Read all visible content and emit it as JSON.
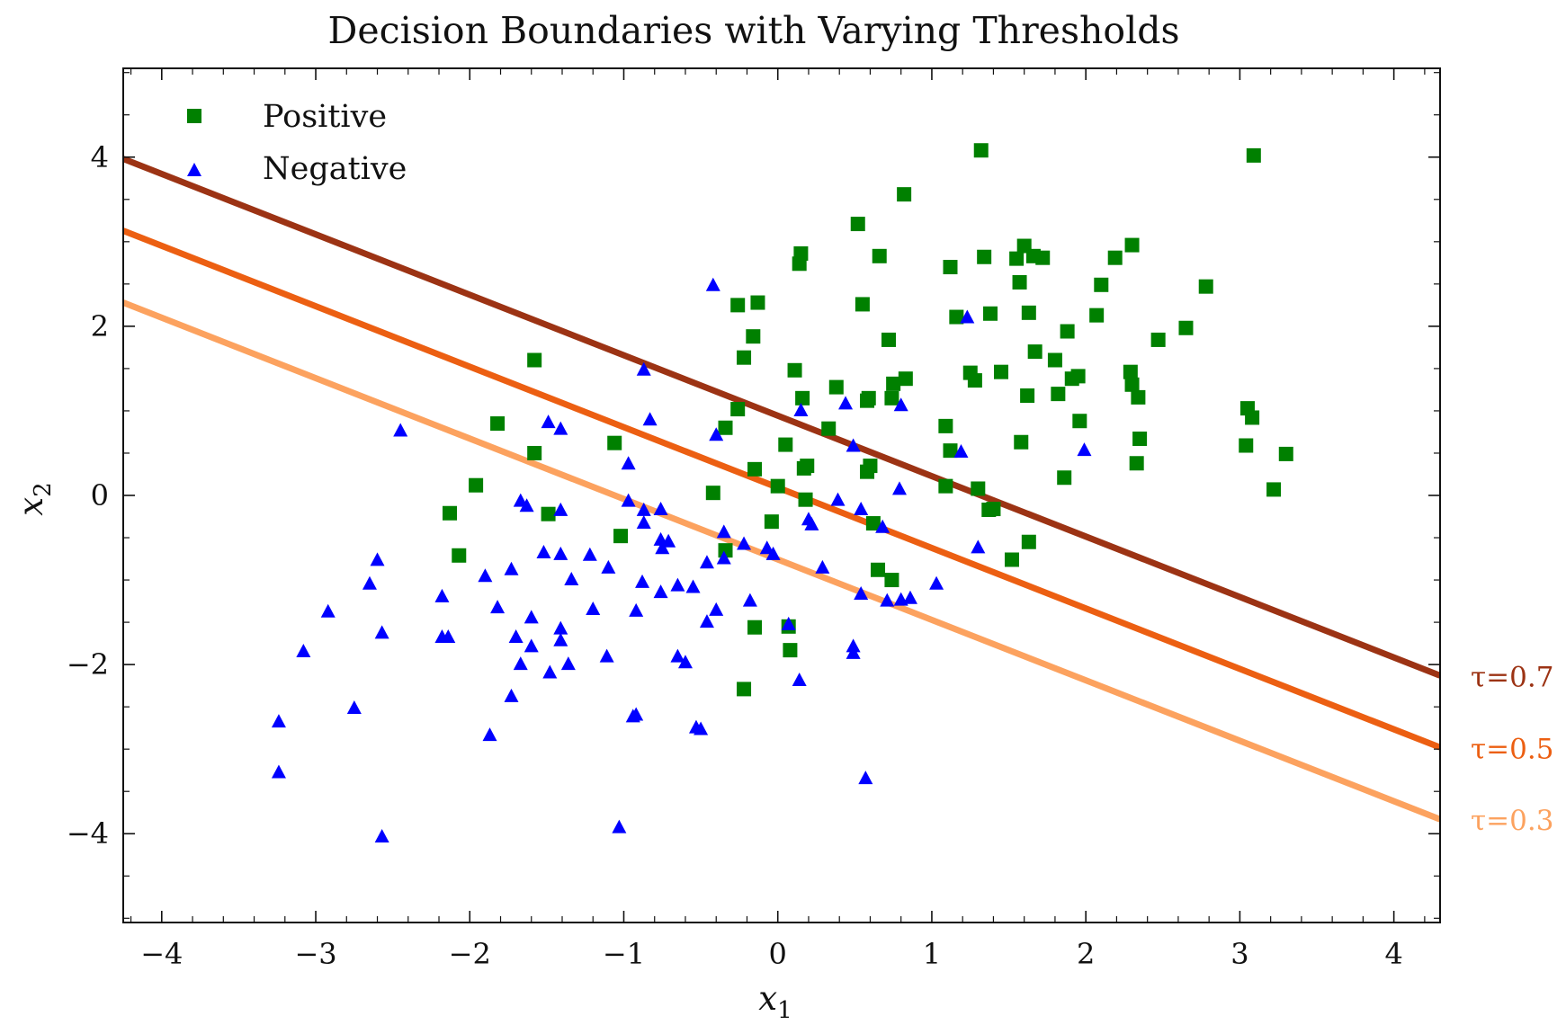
{
  "chart_data": {
    "type": "scatter",
    "title": "Decision Boundaries with Varying Thresholds",
    "xlabel": "x1",
    "ylabel": "x2",
    "xlim": [
      -4.25,
      4.3
    ],
    "ylim": [
      -5.05,
      5.05
    ],
    "x_ticks": [
      -4,
      -3,
      -2,
      -1,
      0,
      1,
      2,
      3,
      4
    ],
    "x_tick_labels": [
      "−4",
      "−3",
      "−2",
      "−1",
      "0",
      "1",
      "2",
      "3",
      "4"
    ],
    "y_ticks": [
      -4,
      -2,
      0,
      2,
      4
    ],
    "y_tick_labels": [
      "−4",
      "−2",
      "0",
      "2",
      "4"
    ],
    "grid": false,
    "legend_position": "top-left",
    "series": [
      {
        "name": "Positive",
        "marker": "square",
        "color": "#008000",
        "points": [
          [
            -1.58,
            1.6
          ],
          [
            -1.82,
            0.85
          ],
          [
            -1.58,
            0.5
          ],
          [
            -1.49,
            -0.22
          ],
          [
            -1.96,
            0.12
          ],
          [
            -2.13,
            -0.21
          ],
          [
            -2.07,
            -0.71
          ],
          [
            -1.06,
            0.62
          ],
          [
            -1.02,
            -0.48
          ],
          [
            -0.26,
            2.25
          ],
          [
            -0.13,
            2.28
          ],
          [
            -0.16,
            1.88
          ],
          [
            -0.22,
            1.63
          ],
          [
            -0.26,
            1.02
          ],
          [
            -0.34,
            0.8
          ],
          [
            -0.42,
            0.03
          ],
          [
            -0.34,
            -0.65
          ],
          [
            -0.15,
            0.31
          ],
          [
            -0.04,
            -0.31
          ],
          [
            0.0,
            0.11
          ],
          [
            0.05,
            0.6
          ],
          [
            0.15,
            2.86
          ],
          [
            0.14,
            2.74
          ],
          [
            0.11,
            1.48
          ],
          [
            0.16,
            1.15
          ],
          [
            0.17,
            0.32
          ],
          [
            0.19,
            0.35
          ],
          [
            0.18,
            -0.05
          ],
          [
            0.07,
            -1.55
          ],
          [
            0.08,
            -1.83
          ],
          [
            -0.22,
            -2.29
          ],
          [
            -0.15,
            -1.56
          ],
          [
            0.52,
            3.21
          ],
          [
            0.55,
            2.26
          ],
          [
            0.58,
            1.12
          ],
          [
            0.59,
            1.15
          ],
          [
            0.38,
            1.28
          ],
          [
            0.33,
            0.79
          ],
          [
            0.6,
            0.35
          ],
          [
            0.58,
            0.28
          ],
          [
            0.62,
            -0.33
          ],
          [
            0.65,
            -0.88
          ],
          [
            0.66,
            2.83
          ],
          [
            0.72,
            1.84
          ],
          [
            0.75,
            1.32
          ],
          [
            0.74,
            1.15
          ],
          [
            0.83,
            1.38
          ],
          [
            0.82,
            3.56
          ],
          [
            0.74,
            -1.0
          ],
          [
            1.32,
            4.08
          ],
          [
            1.12,
            2.7
          ],
          [
            1.34,
            2.82
          ],
          [
            1.16,
            2.11
          ],
          [
            1.38,
            2.15
          ],
          [
            1.25,
            1.45
          ],
          [
            1.28,
            1.36
          ],
          [
            1.45,
            1.46
          ],
          [
            1.09,
            0.82
          ],
          [
            1.12,
            0.53
          ],
          [
            1.09,
            0.11
          ],
          [
            1.3,
            0.08
          ],
          [
            1.37,
            -0.17
          ],
          [
            1.4,
            -0.16
          ],
          [
            1.52,
            -0.76
          ],
          [
            1.63,
            -0.55
          ],
          [
            1.55,
            2.8
          ],
          [
            1.6,
            2.95
          ],
          [
            1.66,
            2.83
          ],
          [
            1.72,
            2.81
          ],
          [
            1.57,
            2.52
          ],
          [
            1.63,
            2.16
          ],
          [
            1.67,
            1.7
          ],
          [
            1.62,
            1.18
          ],
          [
            1.58,
            0.63
          ],
          [
            1.8,
            1.6
          ],
          [
            1.88,
            1.94
          ],
          [
            1.91,
            1.38
          ],
          [
            1.95,
            1.41
          ],
          [
            1.82,
            1.2
          ],
          [
            1.96,
            0.88
          ],
          [
            1.86,
            0.21
          ],
          [
            2.07,
            2.13
          ],
          [
            2.1,
            2.49
          ],
          [
            2.19,
            2.81
          ],
          [
            2.3,
            2.96
          ],
          [
            2.29,
            1.46
          ],
          [
            2.3,
            1.31
          ],
          [
            2.34,
            1.16
          ],
          [
            2.35,
            0.67
          ],
          [
            2.33,
            0.38
          ],
          [
            2.47,
            1.84
          ],
          [
            2.65,
            1.98
          ],
          [
            2.78,
            2.47
          ],
          [
            3.09,
            4.02
          ],
          [
            3.05,
            1.03
          ],
          [
            3.08,
            0.92
          ],
          [
            3.04,
            0.59
          ],
          [
            3.3,
            0.49
          ],
          [
            3.22,
            0.07
          ]
        ]
      },
      {
        "name": "Negative",
        "marker": "triangle",
        "color": "#0000ff",
        "points": [
          [
            -2.45,
            0.76
          ],
          [
            -2.6,
            -0.77
          ],
          [
            -2.65,
            -1.05
          ],
          [
            -2.92,
            -1.38
          ],
          [
            -3.08,
            -1.85
          ],
          [
            -2.57,
            -1.63
          ],
          [
            -3.24,
            -2.68
          ],
          [
            -3.24,
            -3.28
          ],
          [
            -2.75,
            -2.52
          ],
          [
            -2.57,
            -4.04
          ],
          [
            -2.18,
            -1.2
          ],
          [
            -2.18,
            -1.68
          ],
          [
            -2.14,
            -1.68
          ],
          [
            -1.9,
            -0.96
          ],
          [
            -1.82,
            -1.33
          ],
          [
            -1.87,
            -2.84
          ],
          [
            -1.73,
            -2.38
          ],
          [
            -1.73,
            -0.88
          ],
          [
            -1.7,
            -1.68
          ],
          [
            -1.67,
            -2.0
          ],
          [
            -1.67,
            -0.07
          ],
          [
            -1.63,
            -0.13
          ],
          [
            -1.6,
            -1.45
          ],
          [
            -1.6,
            -1.79
          ],
          [
            -1.52,
            -0.68
          ],
          [
            -1.49,
            0.86
          ],
          [
            -1.48,
            -2.1
          ],
          [
            -1.41,
            0.78
          ],
          [
            -1.41,
            -0.18
          ],
          [
            -1.41,
            -1.58
          ],
          [
            -1.41,
            -1.72
          ],
          [
            -1.41,
            -0.7
          ],
          [
            -1.36,
            -2.0
          ],
          [
            -1.34,
            -1.0
          ],
          [
            -1.22,
            -0.71
          ],
          [
            -1.2,
            -1.35
          ],
          [
            -1.1,
            -0.86
          ],
          [
            -1.11,
            -1.91
          ],
          [
            -0.97,
            0.37
          ],
          [
            -0.97,
            -0.07
          ],
          [
            -0.94,
            -2.62
          ],
          [
            -0.92,
            -2.6
          ],
          [
            -0.92,
            -1.37
          ],
          [
            -0.87,
            -0.18
          ],
          [
            -0.87,
            -0.33
          ],
          [
            -0.88,
            -1.03
          ],
          [
            -0.87,
            1.48
          ],
          [
            -0.83,
            0.89
          ],
          [
            -0.76,
            -0.17
          ],
          [
            -0.76,
            -0.53
          ],
          [
            -0.75,
            -0.63
          ],
          [
            -0.76,
            -1.15
          ],
          [
            -0.71,
            -0.55
          ],
          [
            -0.65,
            -1.07
          ],
          [
            -0.65,
            -1.91
          ],
          [
            -0.6,
            -1.98
          ],
          [
            -0.55,
            -1.09
          ],
          [
            -0.53,
            -2.75
          ],
          [
            -0.5,
            -2.77
          ],
          [
            -0.46,
            -1.5
          ],
          [
            -0.46,
            -0.8
          ],
          [
            -0.42,
            2.48
          ],
          [
            -0.4,
            0.71
          ],
          [
            -0.4,
            -1.36
          ],
          [
            -0.35,
            -0.44
          ],
          [
            -0.35,
            -0.75
          ],
          [
            -0.22,
            -0.58
          ],
          [
            -0.18,
            -1.25
          ],
          [
            -0.07,
            -0.63
          ],
          [
            -0.03,
            -0.7
          ],
          [
            0.07,
            -1.53
          ],
          [
            0.14,
            -2.19
          ],
          [
            0.15,
            1.0
          ],
          [
            0.2,
            -0.29
          ],
          [
            0.22,
            -0.35
          ],
          [
            0.29,
            -0.86
          ],
          [
            0.39,
            -0.06
          ],
          [
            0.44,
            1.08
          ],
          [
            0.49,
            0.58
          ],
          [
            0.49,
            -1.79
          ],
          [
            0.49,
            -1.87
          ],
          [
            0.54,
            -0.17
          ],
          [
            0.54,
            -1.17
          ],
          [
            0.57,
            -3.35
          ],
          [
            0.68,
            -0.38
          ],
          [
            0.71,
            -1.25
          ],
          [
            0.79,
            0.07
          ],
          [
            0.8,
            1.06
          ],
          [
            0.8,
            -1.24
          ],
          [
            0.86,
            -1.22
          ],
          [
            1.03,
            -1.05
          ],
          [
            1.19,
            0.51
          ],
          [
            1.23,
            2.1
          ],
          [
            1.3,
            -0.62
          ],
          [
            1.99,
            0.53
          ],
          [
            -1.03,
            -3.93
          ]
        ]
      }
    ],
    "lines": [
      {
        "label": "τ=0.7",
        "color": "#9c3314",
        "x": [
          -4.25,
          4.3
        ],
        "y": [
          3.98,
          -2.13
        ]
      },
      {
        "label": "τ=0.5",
        "color": "#ec5f12",
        "x": [
          -4.25,
          4.3
        ],
        "y": [
          3.13,
          -2.98
        ]
      },
      {
        "label": "τ=0.3",
        "color": "#fca25f",
        "x": [
          -4.25,
          4.3
        ],
        "y": [
          2.28,
          -3.83
        ]
      }
    ]
  }
}
